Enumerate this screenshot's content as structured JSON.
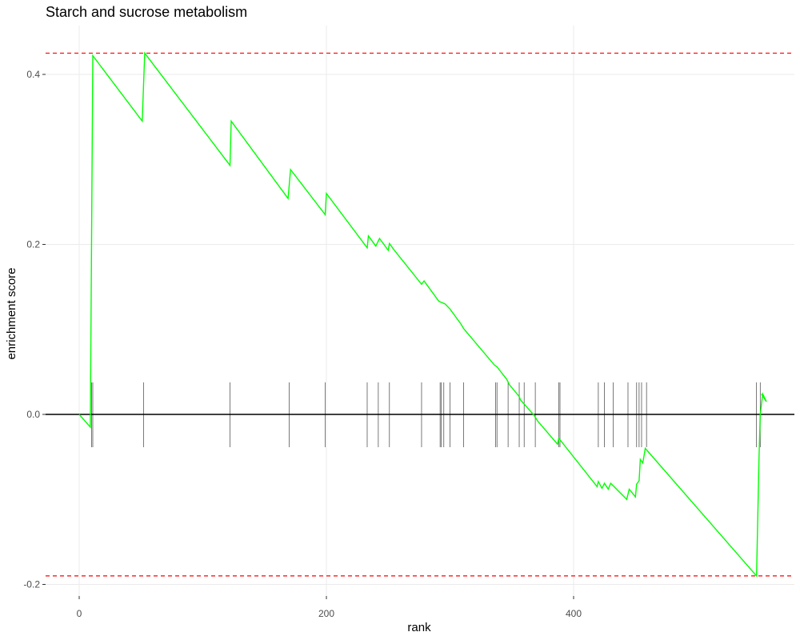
{
  "chart_data": {
    "type": "line",
    "title": "Starch and sucrose metabolism",
    "xlabel": "rank",
    "ylabel": "enrichment score",
    "xlim": [
      -28,
      570
    ],
    "ylim": [
      -0.2,
      0.4
    ],
    "x_ticks": [
      0,
      200,
      400
    ],
    "x_tick_labels": [
      "0",
      "200",
      "400"
    ],
    "y_ticks": [
      -0.2,
      0.0,
      0.2,
      0.4
    ],
    "y_tick_labels": [
      "-0.2",
      "0.0",
      "0.2",
      "0.4"
    ],
    "grid": true,
    "colors": {
      "curve": "#00ff00",
      "reference_lines": "#ff0000",
      "hits": "#000000",
      "zero_line": "#000000",
      "grid": "#ebebeb"
    },
    "reference_lines": [
      0.425,
      -0.19
    ],
    "hits": [
      10,
      11,
      52,
      122,
      170,
      199,
      233,
      242,
      251,
      277,
      292,
      293,
      295,
      300,
      311,
      337,
      338,
      347,
      356,
      360,
      369,
      388,
      389,
      420,
      425,
      432,
      444,
      451,
      453,
      455,
      459,
      548,
      551
    ],
    "series": [
      {
        "x": [
          0,
          9,
          11,
          51,
          53,
          122,
          123,
          169,
          171,
          199,
          200,
          233,
          234,
          240,
          243,
          250,
          251,
          255,
          277,
          279,
          291,
          296,
          300,
          309,
          311,
          336,
          338,
          346,
          348,
          356,
          357,
          368,
          371,
          387,
          388,
          419,
          420,
          423,
          425,
          428,
          430,
          443,
          445,
          450,
          451,
          453,
          454,
          456,
          458,
          548,
          550,
          551,
          553,
          556,
          552
        ],
        "y": [
          0.0,
          -0.015,
          0.422,
          0.345,
          0.425,
          0.293,
          0.345,
          0.254,
          0.288,
          0.235,
          0.26,
          0.196,
          0.21,
          0.198,
          0.207,
          0.193,
          0.201,
          0.193,
          0.153,
          0.157,
          0.133,
          0.13,
          0.124,
          0.106,
          0.101,
          0.058,
          0.056,
          0.041,
          0.035,
          0.021,
          0.017,
          -0.001,
          -0.008,
          -0.035,
          -0.028,
          -0.085,
          -0.079,
          -0.087,
          -0.081,
          -0.088,
          -0.081,
          -0.1,
          -0.088,
          -0.097,
          -0.082,
          -0.078,
          -0.053,
          -0.057,
          -0.04,
          -0.19,
          -0.05,
          0.0,
          0.024,
          0.015,
          0.024
        ]
      }
    ]
  }
}
